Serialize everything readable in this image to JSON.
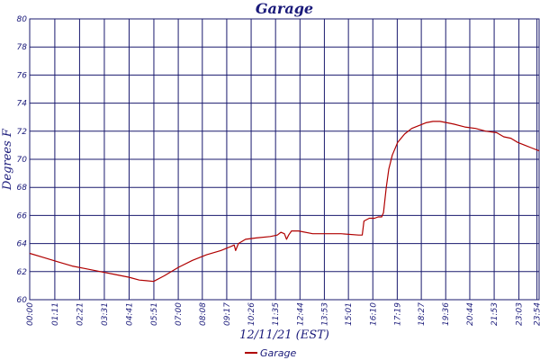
{
  "chart_data": {
    "type": "line",
    "title": "Garage",
    "xlabel": "12/11/21 (EST)",
    "ylabel": "Degrees F",
    "ylim": [
      60,
      80
    ],
    "yticks": [
      60,
      62,
      64,
      66,
      68,
      70,
      72,
      74,
      76,
      78,
      80
    ],
    "xlim": [
      0,
      1440
    ],
    "xticks": [
      {
        "value": 0,
        "label": "00:00"
      },
      {
        "value": 71,
        "label": "01:11"
      },
      {
        "value": 141,
        "label": "02:21"
      },
      {
        "value": 211,
        "label": "03:31"
      },
      {
        "value": 281,
        "label": "04:41"
      },
      {
        "value": 351,
        "label": "05:51"
      },
      {
        "value": 420,
        "label": "07:00"
      },
      {
        "value": 488,
        "label": "08:08"
      },
      {
        "value": 557,
        "label": "09:17"
      },
      {
        "value": 626,
        "label": "10:26"
      },
      {
        "value": 695,
        "label": "11:35"
      },
      {
        "value": 764,
        "label": "12:44"
      },
      {
        "value": 833,
        "label": "13:53"
      },
      {
        "value": 901,
        "label": "15:01"
      },
      {
        "value": 970,
        "label": "16:10"
      },
      {
        "value": 1039,
        "label": "17:19"
      },
      {
        "value": 1107,
        "label": "18:27"
      },
      {
        "value": 1176,
        "label": "19:36"
      },
      {
        "value": 1244,
        "label": "20:44"
      },
      {
        "value": 1313,
        "label": "21:53"
      },
      {
        "value": 1383,
        "label": "23:03"
      },
      {
        "value": 1434,
        "label": "23:54"
      }
    ],
    "grid": true,
    "legend_position": "bottom-center",
    "series": [
      {
        "name": "Garage",
        "color": "#b00000",
        "x": [
          0,
          40,
          80,
          120,
          160,
          200,
          240,
          280,
          310,
          330,
          350,
          380,
          420,
          460,
          500,
          540,
          570,
          578,
          582,
          590,
          610,
          640,
          680,
          700,
          710,
          720,
          726,
          732,
          740,
          760,
          800,
          840,
          880,
          930,
          940,
          945,
          960,
          975,
          985,
          995,
          1000,
          1008,
          1015,
          1025,
          1040,
          1060,
          1080,
          1100,
          1120,
          1140,
          1160,
          1180,
          1200,
          1230,
          1260,
          1290,
          1320,
          1340,
          1360,
          1380,
          1400,
          1420,
          1440
        ],
        "y": [
          63.3,
          63.0,
          62.7,
          62.4,
          62.2,
          62.0,
          61.8,
          61.6,
          61.4,
          61.35,
          61.3,
          61.7,
          62.3,
          62.8,
          63.2,
          63.5,
          63.8,
          63.9,
          63.5,
          64.0,
          64.3,
          64.4,
          64.5,
          64.6,
          64.8,
          64.7,
          64.3,
          64.6,
          64.9,
          64.9,
          64.7,
          64.7,
          64.7,
          64.6,
          64.6,
          65.6,
          65.8,
          65.8,
          65.9,
          65.9,
          66.2,
          68.0,
          69.3,
          70.3,
          71.2,
          71.8,
          72.2,
          72.4,
          72.6,
          72.7,
          72.7,
          72.6,
          72.5,
          72.3,
          72.2,
          72.0,
          71.9,
          71.6,
          71.5,
          71.2,
          71.0,
          70.8,
          70.6
        ]
      }
    ]
  }
}
